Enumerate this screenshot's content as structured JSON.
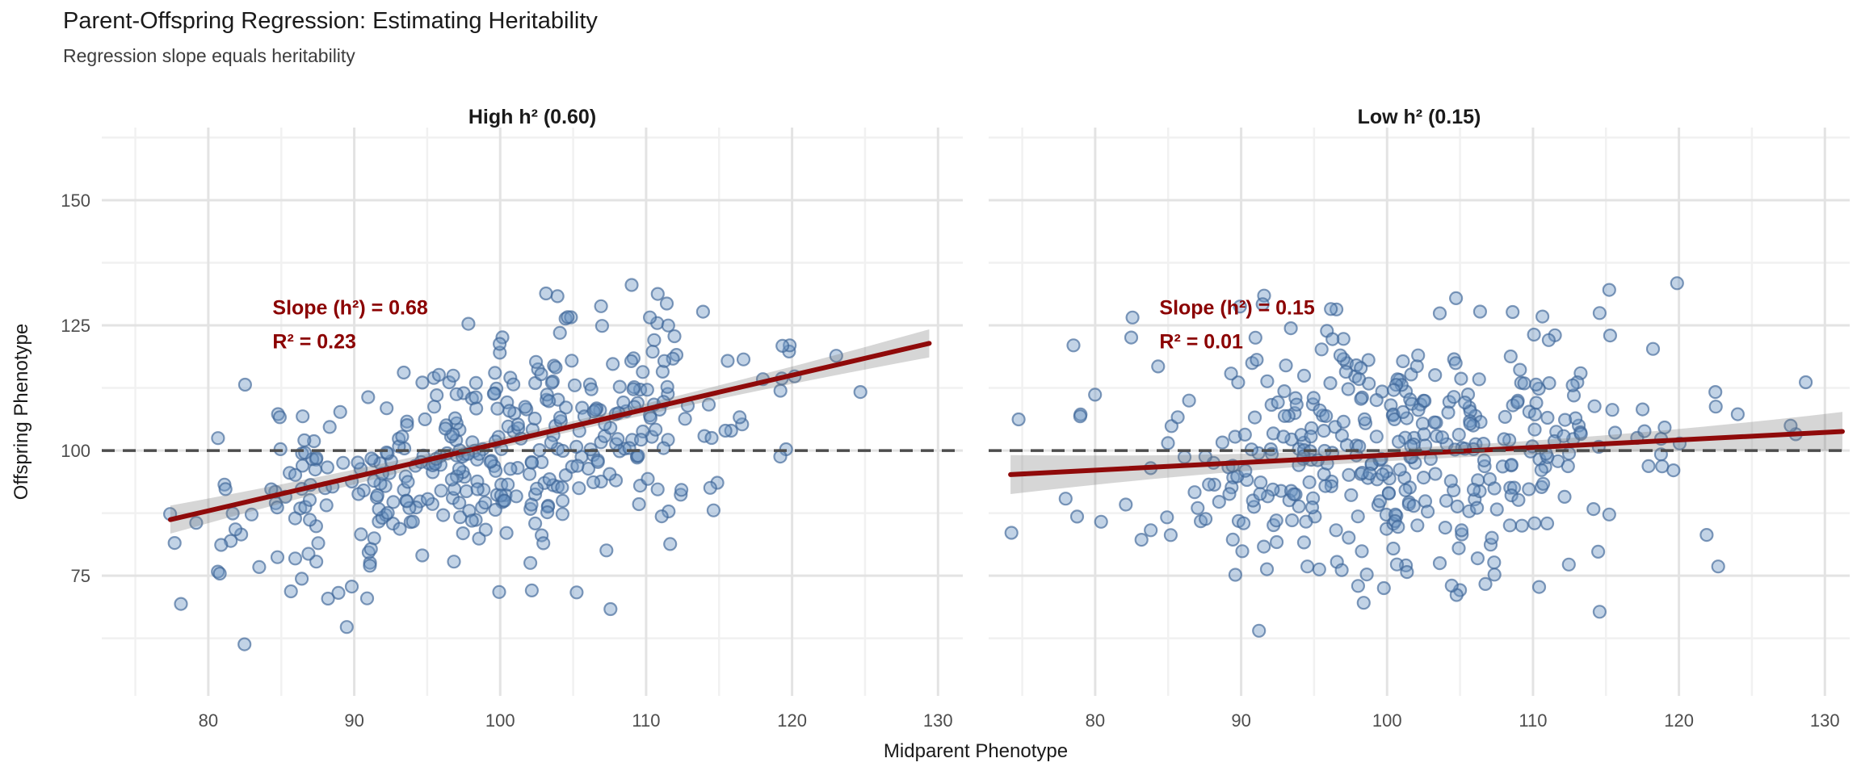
{
  "title": "Parent-Offspring Regression: Estimating Heritability",
  "subtitle": "Regression slope equals heritability",
  "axes": {
    "x_label": "Midparent Phenotype",
    "y_label": "Offspring Phenotype"
  },
  "chart_data": {
    "type": "scatter",
    "title": "Parent-Offspring Regression: Estimating Heritability",
    "subtitle": "Regression slope equals heritability",
    "xlabel": "Midparent Phenotype",
    "ylabel": "Offspring Phenotype",
    "x_domain": [
      72.7,
      131.7
    ],
    "y_domain": [
      51,
      164.5
    ],
    "x_ticks": [
      80,
      90,
      100,
      110,
      120,
      130
    ],
    "x_minor_ticks": [
      75,
      85,
      95,
      105,
      115,
      125
    ],
    "y_ticks": [
      75,
      100,
      125,
      150
    ],
    "y_minor_ticks": [
      62.5,
      87.5,
      112.5,
      137.5,
      162.5
    ],
    "grid": "on",
    "reference_line_y": 100,
    "n_points_per_panel": 400,
    "panels": [
      {
        "label": "High h² (0.60)",
        "true_h2": 0.6,
        "estimated_slope": 0.68,
        "r_squared": 0.23,
        "annotation_line1": "Slope (h²) = 0.68",
        "annotation_line2": "R² = 0.23",
        "annotation_x": 84.4,
        "annotation_y1": 127.2,
        "annotation_y2": 120.4,
        "regression_line": {
          "x1": 77.4,
          "y1": 86.2,
          "x2": 129.4,
          "y2": 121.4
        },
        "ci_halfwidth": {
          "mid": 1.0,
          "end": 2.8
        },
        "points_model": {
          "seed": 1234,
          "n": 400,
          "x_mean": 99.5,
          "x_sd": 9.2,
          "x_min": 77.2,
          "x_max": 129.6,
          "line_slope": 0.677,
          "line_intercept": 32.0,
          "resid_sd": 11.6,
          "y_min": 61,
          "y_max": 146
        }
      },
      {
        "label": "Low h² (0.15)",
        "true_h2": 0.15,
        "estimated_slope": 0.15,
        "r_squared": 0.01,
        "annotation_line1": "Slope (h²) = 0.15",
        "annotation_line2": "R² = 0.01",
        "annotation_x": 84.4,
        "annotation_y1": 127.2,
        "annotation_y2": 120.4,
        "regression_line": {
          "x1": 74.2,
          "y1": 95.2,
          "x2": 131.2,
          "y2": 103.8
        },
        "ci_halfwidth": {
          "mid": 1.2,
          "end": 3.9
        },
        "points_model": {
          "seed": 5678,
          "n": 400,
          "x_mean": 100.5,
          "x_sd": 9.6,
          "x_min": 74.2,
          "x_max": 131.2,
          "line_slope": 0.15,
          "line_intercept": 85.0,
          "resid_sd": 14.2,
          "y_min": 53,
          "y_max": 158
        }
      }
    ]
  },
  "style": {
    "point_fill": "rgba(110,150,195,0.42)",
    "point_stroke": "rgba(60,100,150,0.65)",
    "regression_color": "#8F0A0A",
    "annotation_color": "#8B0000",
    "ci_band_color": "rgba(120,120,120,0.30)",
    "reference_line_color": "#4d4d4d",
    "grid_major_color": "#E3E3E3",
    "grid_minor_color": "#F1F1F1",
    "title_color": "#1a1a1a",
    "tick_text_color": "#4d4d4d",
    "strip_text_color": "#1a1a1a"
  }
}
